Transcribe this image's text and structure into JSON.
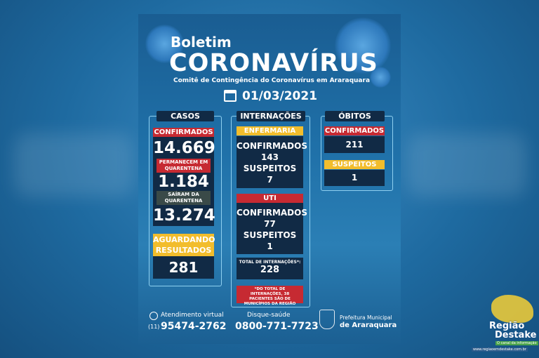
{
  "header": {
    "boletim": "Boletim",
    "title": "CORONAVÍRUS",
    "subtitle": "Comitê de Contingência do Coronavírus em Araraquara",
    "date": "01/03/2021"
  },
  "casos": {
    "title": "CASOS",
    "confirmados_label": "CONFIRMADOS",
    "confirmados": "14.669",
    "permanecem_label": "PERMANECEM EM QUARENTENA",
    "permanecem": "1.184",
    "sairam_label": "SAÍRAM DA QUARENTENA",
    "sairam": "13.274",
    "aguardando_label": "AGUARDANDO RESULTADOS",
    "aguardando": "281"
  },
  "internacoes": {
    "title": "INTERNAÇÕES",
    "enfermaria": {
      "label": "ENFERMARIA",
      "confirmados_label": "CONFIRMADOS",
      "confirmados": "143",
      "suspeitos_label": "SUSPEITOS",
      "suspeitos": "7"
    },
    "uti": {
      "label": "UTI",
      "confirmados_label": "CONFIRMADOS",
      "confirmados": "77",
      "suspeitos_label": "SUSPEITOS",
      "suspeitos": "1"
    },
    "total_label": "TOTAL DE INTERNAÇÕES*:",
    "total": "228",
    "note": "*DO TOTAL DE INTERNAÇÕES, 38 PACIENTES SÃO DE MUNICÍPIOS DA REGIÃO"
  },
  "obitos": {
    "title": "ÓBITOS",
    "confirmados_label": "CONFIRMADOS",
    "confirmados": "211",
    "suspeitos_label": "SUSPEITOS",
    "suspeitos": "1"
  },
  "footer": {
    "whatsapp_label": "Atendimento virtual",
    "whatsapp_ddd": "(11)",
    "whatsapp_number": "95474-2762",
    "disque_label": "Disque-saúde",
    "disque_number": "0800-771-7723",
    "prefeitura_line1": "Prefeitura Municipal",
    "prefeitura_line2": "de Araraquara"
  },
  "watermark": {
    "line1": "Região",
    "line2": "Destake",
    "tagline": "O canal da informação",
    "url": "www.regiaoemdestake.com.br"
  },
  "colors": {
    "red": "#c62a32",
    "yellow": "#f2bd2c",
    "navy": "#112a45"
  }
}
